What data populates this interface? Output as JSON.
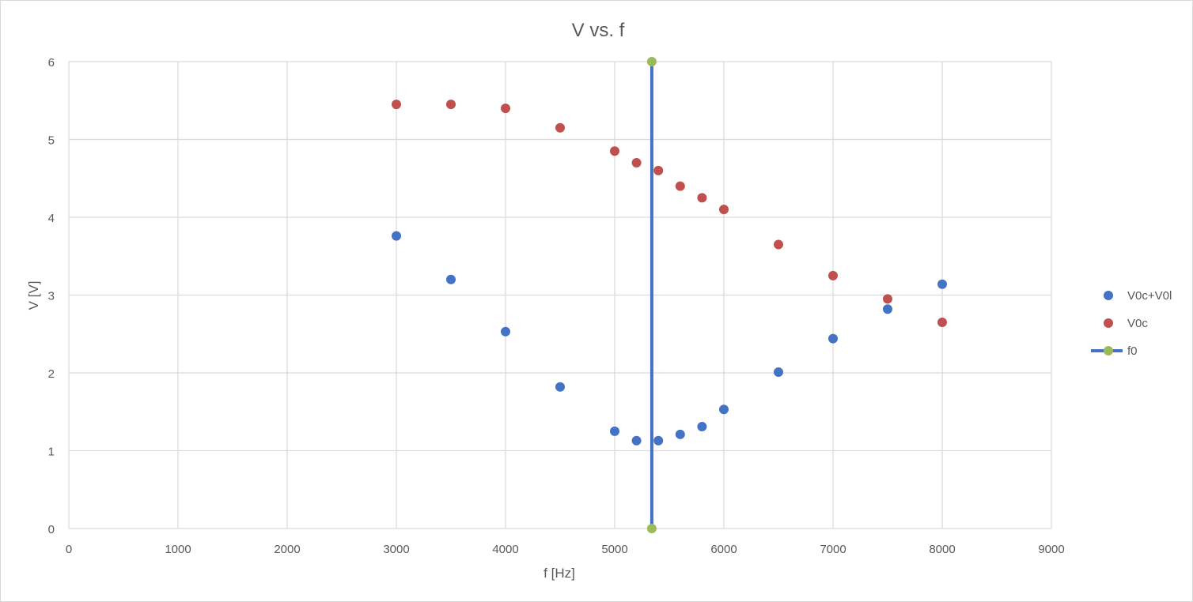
{
  "chart_data": {
    "type": "scatter",
    "title": "V vs. f",
    "xlabel": "f [Hz]",
    "ylabel": "V [V]",
    "xlim": [
      0,
      9000
    ],
    "ylim": [
      0,
      6
    ],
    "xticks": [
      0,
      1000,
      2000,
      3000,
      4000,
      5000,
      6000,
      7000,
      8000,
      9000
    ],
    "yticks": [
      0,
      1,
      2,
      3,
      4,
      5,
      6
    ],
    "grid": true,
    "legend_position": "right",
    "series": [
      {
        "name": "V0c+V0l",
        "type": "scatter",
        "color": "#4472c4",
        "points": [
          [
            3000,
            3.76
          ],
          [
            3500,
            3.2
          ],
          [
            4000,
            2.53
          ],
          [
            4500,
            1.82
          ],
          [
            5000,
            1.25
          ],
          [
            5200,
            1.13
          ],
          [
            5400,
            1.13
          ],
          [
            5600,
            1.21
          ],
          [
            5800,
            1.31
          ],
          [
            6000,
            1.53
          ],
          [
            6500,
            2.01
          ],
          [
            7000,
            2.44
          ],
          [
            7500,
            2.82
          ],
          [
            8000,
            3.14
          ]
        ]
      },
      {
        "name": "V0c",
        "type": "scatter",
        "color": "#c0504d",
        "points": [
          [
            3000,
            5.45
          ],
          [
            3500,
            5.45
          ],
          [
            4000,
            5.4
          ],
          [
            4500,
            5.15
          ],
          [
            5000,
            4.85
          ],
          [
            5200,
            4.7
          ],
          [
            5400,
            4.6
          ],
          [
            5600,
            4.4
          ],
          [
            5800,
            4.25
          ],
          [
            6000,
            4.1
          ],
          [
            6500,
            3.65
          ],
          [
            7000,
            3.25
          ],
          [
            7500,
            2.95
          ],
          [
            8000,
            2.65
          ]
        ]
      },
      {
        "name": "f0",
        "type": "line-markers",
        "color": "#4472c4",
        "marker_color": "#9bbb59",
        "points": [
          [
            5340,
            0
          ],
          [
            5340,
            6
          ]
        ]
      }
    ]
  }
}
